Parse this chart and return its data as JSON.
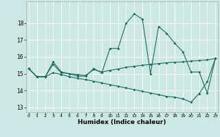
{
  "xlabel": "Humidex (Indice chaleur)",
  "bg_color": "#cce8e4",
  "grid_color": "#ffffff",
  "line_color": "#1a6b5a",
  "xticks": [
    0,
    1,
    2,
    3,
    4,
    5,
    6,
    7,
    8,
    9,
    10,
    11,
    12,
    13,
    14,
    15,
    16,
    17,
    18,
    19,
    20,
    21,
    22,
    23
  ],
  "yticks": [
    13,
    14,
    15,
    16,
    17,
    18
  ],
  "ylim": [
    12.7,
    19.3
  ],
  "xlim": [
    -0.3,
    23.3
  ],
  "series1_y": [
    15.3,
    14.8,
    14.8,
    15.7,
    15.1,
    15.0,
    14.85,
    14.85,
    15.3,
    15.05,
    16.5,
    16.5,
    18.0,
    18.55,
    18.25,
    15.0,
    17.8,
    17.4,
    16.8,
    16.3,
    15.1,
    15.1,
    13.85,
    15.9
  ],
  "series2_y": [
    15.3,
    14.82,
    14.82,
    15.55,
    15.05,
    15.0,
    14.95,
    14.9,
    15.25,
    15.1,
    15.2,
    15.28,
    15.38,
    15.44,
    15.5,
    15.55,
    15.6,
    15.65,
    15.68,
    15.7,
    15.75,
    15.78,
    15.82,
    15.9
  ],
  "series3_y": [
    15.3,
    14.82,
    14.82,
    15.05,
    14.95,
    14.82,
    14.72,
    14.65,
    14.55,
    14.45,
    14.35,
    14.25,
    14.15,
    14.05,
    13.95,
    13.85,
    13.75,
    13.65,
    13.6,
    13.5,
    13.3,
    13.82,
    14.52,
    15.9
  ]
}
